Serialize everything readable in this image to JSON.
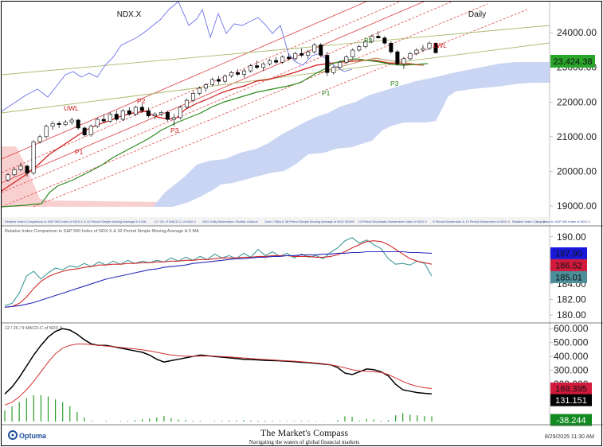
{
  "header": {
    "symbol": "NDX.X",
    "period": "Daily"
  },
  "price_panel": {
    "legend_strip": [
      "Relative Index Comparison to S&P 500 Index of NDX.X & 32 Period Simple Moving Average & 5 MA",
      "12 / 26 / 9 MACD-C of NDX.X",
      "NDX Daily Momentum / Bullish Outlook",
      "Over / SMA & 38 Period Simple Moving Average of NDX NDXM",
      "13 Period Stochastic Momentum Index of NDX.X",
      "5 Period Momentum & 13 Period Momentum of NDX.X",
      "Relative Index Comparison to S&P 500 Index of NDX.X"
    ],
    "labels": {
      "uwl": "UWL",
      "lwl": "LWL",
      "p1_a": "P1",
      "p2_a": "P2",
      "p3_a": "P3",
      "p1_b": "P1",
      "p2_b": "P2",
      "p3_b": "P3"
    },
    "last_price": "23,424.38"
  },
  "rel_panel": {
    "title": "Relative Index Comparison to S&P 500 Index of NDX.X & 32 Period Simple Moving Average & 5 MA",
    "badges": [
      "187.90",
      "186.52",
      "185.01"
    ]
  },
  "macd_panel": {
    "title": "12 / 26 / 9 MACD-C of NDX.X",
    "badges": [
      "169.395",
      "131.151",
      "-38.244"
    ]
  },
  "footer": {
    "brand": "Optuma",
    "center_title": "The Market's Compass",
    "center_subtitle": "Navigating the waters of global financial markets",
    "timestamp": "8/29/2025 11:30 AM"
  },
  "colors": {
    "bull_candle": "#ffffff",
    "bear_candle": "#000000",
    "red_line": "#d01818",
    "green_line": "#2c8a1c",
    "blue_line": "#6b72e8",
    "cloud_blue": "#c9d5f3",
    "cloud_red": "#f9d0d0",
    "badge_green": "#2aa52a",
    "badge_blue": "#1a18d8",
    "badge_red": "#d11a3c",
    "badge_teal": "#4c8f9a",
    "badge_black": "#000000",
    "badge_dgreen": "#118a22"
  },
  "chart_data": [
    {
      "type": "candlestick",
      "title": "NDX.X",
      "ylim": [
        18700,
        24900
      ],
      "yticks": [
        "24000.00",
        "23000.00",
        "22000.00",
        "21000.00",
        "20000.00",
        "19000.00"
      ],
      "ohlc": [
        [
          19750,
          19950,
          19700,
          19900
        ],
        [
          19900,
          20100,
          19850,
          20050
        ],
        [
          20050,
          20250,
          20000,
          20150
        ],
        [
          20150,
          20200,
          19850,
          19950
        ],
        [
          19950,
          20900,
          19900,
          20850
        ],
        [
          20850,
          21050,
          20800,
          21000
        ],
        [
          21000,
          21350,
          20950,
          21300
        ],
        [
          21300,
          21450,
          21200,
          21380
        ],
        [
          21380,
          21450,
          21250,
          21350
        ],
        [
          21350,
          21480,
          21300,
          21420
        ],
        [
          21420,
          21550,
          21350,
          21480
        ],
        [
          21480,
          21520,
          21200,
          21250
        ],
        [
          21250,
          21300,
          21000,
          21050
        ],
        [
          21050,
          21350,
          21000,
          21300
        ],
        [
          21300,
          21550,
          21250,
          21500
        ],
        [
          21500,
          21650,
          21400,
          21450
        ],
        [
          21450,
          21700,
          21400,
          21650
        ],
        [
          21650,
          21750,
          21450,
          21500
        ],
        [
          21500,
          21800,
          21450,
          21750
        ],
        [
          21750,
          21850,
          21600,
          21650
        ],
        [
          21650,
          21900,
          21600,
          21850
        ],
        [
          21850,
          21950,
          21700,
          21750
        ],
        [
          21750,
          21850,
          21550,
          21600
        ],
        [
          21600,
          21700,
          21500,
          21650
        ],
        [
          21650,
          21750,
          21600,
          21700
        ],
        [
          21700,
          21750,
          21450,
          21500
        ],
        [
          21500,
          21650,
          21300,
          21550
        ],
        [
          21550,
          21900,
          21500,
          21850
        ],
        [
          21850,
          22100,
          21800,
          22050
        ],
        [
          22050,
          22300,
          22000,
          22250
        ],
        [
          22250,
          22450,
          22200,
          22400
        ],
        [
          22400,
          22550,
          22300,
          22500
        ],
        [
          22500,
          22700,
          22450,
          22650
        ],
        [
          22650,
          22750,
          22500,
          22600
        ],
        [
          22600,
          22800,
          22550,
          22750
        ],
        [
          22750,
          22900,
          22700,
          22850
        ],
        [
          22850,
          22950,
          22750,
          22800
        ],
        [
          22800,
          22950,
          22700,
          22900
        ],
        [
          22900,
          23100,
          22850,
          23050
        ],
        [
          23050,
          23200,
          22950,
          23000
        ],
        [
          23000,
          23150,
          22900,
          23100
        ],
        [
          23100,
          23250,
          23050,
          23200
        ],
        [
          23200,
          23300,
          23100,
          23150
        ],
        [
          23150,
          23350,
          23100,
          23300
        ],
        [
          23300,
          23400,
          23200,
          23250
        ],
        [
          23250,
          23450,
          23200,
          23400
        ],
        [
          23400,
          23550,
          23300,
          23350
        ],
        [
          23350,
          23500,
          23250,
          23450
        ],
        [
          23450,
          23700,
          23400,
          23650
        ],
        [
          23650,
          23700,
          23300,
          23350
        ],
        [
          23350,
          23450,
          22750,
          22850
        ],
        [
          22850,
          23050,
          22800,
          23000
        ],
        [
          23000,
          23200,
          22950,
          23150
        ],
        [
          23150,
          23350,
          23100,
          23300
        ],
        [
          23300,
          23550,
          23250,
          23500
        ],
        [
          23500,
          23650,
          23450,
          23600
        ],
        [
          23600,
          23800,
          23550,
          23750
        ],
        [
          23750,
          23950,
          23700,
          23900
        ],
        [
          23900,
          24050,
          23850,
          23850
        ],
        [
          23850,
          23900,
          23650,
          23700
        ],
        [
          23700,
          23750,
          23400,
          23450
        ],
        [
          23450,
          23500,
          23050,
          23100
        ],
        [
          23100,
          23300,
          22950,
          23250
        ],
        [
          23250,
          23450,
          23200,
          23400
        ],
        [
          23400,
          23550,
          23350,
          23500
        ],
        [
          23500,
          23650,
          23450,
          23550
        ],
        [
          23550,
          23750,
          23500,
          23700
        ],
        [
          23700,
          23720,
          23400,
          23424
        ]
      ]
    },
    {
      "type": "line",
      "title": "Relative Index Comparison to S&P 500 Index of NDX.X & 32 Period Simple Moving Average & 5 MA",
      "ylim": [
        179.2,
        191.2
      ],
      "yticks": [
        "190.00",
        "188.00",
        "186.00",
        "184.00",
        "182.00",
        "180.00"
      ],
      "series": [
        {
          "color": "#3f9a9a",
          "values": [
            181.2,
            181.5,
            182.8,
            185.0,
            185.6,
            184.6,
            185.4,
            186.0,
            185.8,
            186.3,
            186.1,
            186.6,
            186.2,
            186.8,
            186.4,
            186.9,
            186.5,
            187.0,
            186.6,
            186.9,
            186.7,
            187.0,
            186.8,
            187.3,
            186.9,
            187.4,
            187.0,
            187.5,
            187.1,
            187.8,
            187.3,
            187.6,
            187.2,
            187.9,
            187.4,
            188.4,
            187.6,
            188.1,
            187.5,
            187.9,
            187.3,
            187.8,
            187.4,
            187.6,
            187.2,
            188.0,
            188.6,
            189.5,
            189.9,
            189.2,
            189.6,
            189.0,
            188.5,
            187.2,
            186.5,
            186.6,
            186.4,
            186.9,
            186.6,
            185.0
          ]
        },
        {
          "color": "#d12b2b",
          "values": [
            181.0,
            181.1,
            181.5,
            182.3,
            183.4,
            184.3,
            184.9,
            185.3,
            185.6,
            185.8,
            185.9,
            186.1,
            186.2,
            186.4,
            186.4,
            186.5,
            186.5,
            186.6,
            186.6,
            186.7,
            186.7,
            186.8,
            186.8,
            186.9,
            186.9,
            187.0,
            187.0,
            187.1,
            187.1,
            187.2,
            187.3,
            187.3,
            187.3,
            187.4,
            187.4,
            187.5,
            187.5,
            187.6,
            187.6,
            187.6,
            187.5,
            187.5,
            187.5,
            187.4,
            187.4,
            187.5,
            187.7,
            188.1,
            188.6,
            189.0,
            189.4,
            189.5,
            189.4,
            189.0,
            188.4,
            187.8,
            187.2,
            186.9,
            186.7,
            186.5
          ]
        },
        {
          "color": "#2a2ab8",
          "values": [
            181.0,
            181.1,
            181.2,
            181.4,
            181.6,
            181.9,
            182.2,
            182.5,
            182.8,
            183.1,
            183.4,
            183.7,
            184.0,
            184.3,
            184.6,
            184.8,
            185.0,
            185.2,
            185.4,
            185.6,
            185.8,
            185.9,
            186.1,
            186.2,
            186.3,
            186.4,
            186.6,
            186.7,
            186.8,
            186.9,
            187.0,
            187.1,
            187.2,
            187.2,
            187.3,
            187.4,
            187.4,
            187.5,
            187.5,
            187.6,
            187.6,
            187.7,
            187.7,
            187.7,
            187.8,
            187.8,
            187.9,
            187.9,
            188.0,
            188.0,
            188.1,
            188.1,
            188.1,
            188.1,
            188.1,
            188.1,
            188.0,
            188.0,
            187.95,
            187.9
          ]
        }
      ]
    },
    {
      "type": "line",
      "title": "12 / 26 / 9 MACD-C of NDX.X",
      "ylim": [
        -80,
        630
      ],
      "yticks": [
        "600.000",
        "500.000",
        "400.000",
        "300.000",
        "200.000",
        "100.000"
      ],
      "series": [
        {
          "color": "#000000",
          "values": [
            130,
            180,
            250,
            330,
            410,
            480,
            540,
            580,
            600,
            590,
            560,
            520,
            490,
            480,
            480,
            470,
            460,
            450,
            440,
            430,
            410,
            380,
            360,
            370,
            380,
            390,
            400,
            410,
            405,
            400,
            395,
            390,
            385,
            380,
            378,
            375,
            372,
            370,
            369,
            366,
            362,
            358,
            355,
            350,
            345,
            340,
            320,
            280,
            270,
            290,
            310,
            305,
            290,
            260,
            200,
            160,
            150,
            140,
            135,
            131
          ]
        },
        {
          "color": "#d13030",
          "values": [
            50,
            70,
            110,
            160,
            220,
            290,
            360,
            420,
            460,
            480,
            490,
            490,
            485,
            480,
            475,
            470,
            465,
            460,
            455,
            448,
            440,
            430,
            420,
            410,
            405,
            402,
            401,
            402,
            403,
            402,
            400,
            397,
            393,
            389,
            385,
            381,
            378,
            375,
            372,
            369,
            366,
            362,
            358,
            353,
            348,
            340,
            330,
            318,
            305,
            296,
            292,
            290,
            285,
            270,
            245,
            220,
            200,
            185,
            175,
            169
          ]
        },
        {
          "type": "bar",
          "color": "#2a9e2a",
          "values": [
            80,
            110,
            140,
            170,
            190,
            190,
            180,
            160,
            140,
            110,
            70,
            30,
            5,
            0,
            5,
            0,
            -5,
            -5,
            -10,
            -15,
            -20,
            -30,
            -40,
            -25,
            -15,
            -10,
            -5,
            5,
            0,
            -5,
            -5,
            -8,
            -8,
            -10,
            -7,
            -6,
            -6,
            -5,
            -3,
            -3,
            -4,
            -4,
            -4,
            -3,
            -3,
            0,
            -10,
            -38,
            -35,
            -6,
            18,
            15,
            5,
            -10,
            -45,
            -60,
            -50,
            -45,
            -40,
            -38
          ]
        }
      ]
    }
  ]
}
